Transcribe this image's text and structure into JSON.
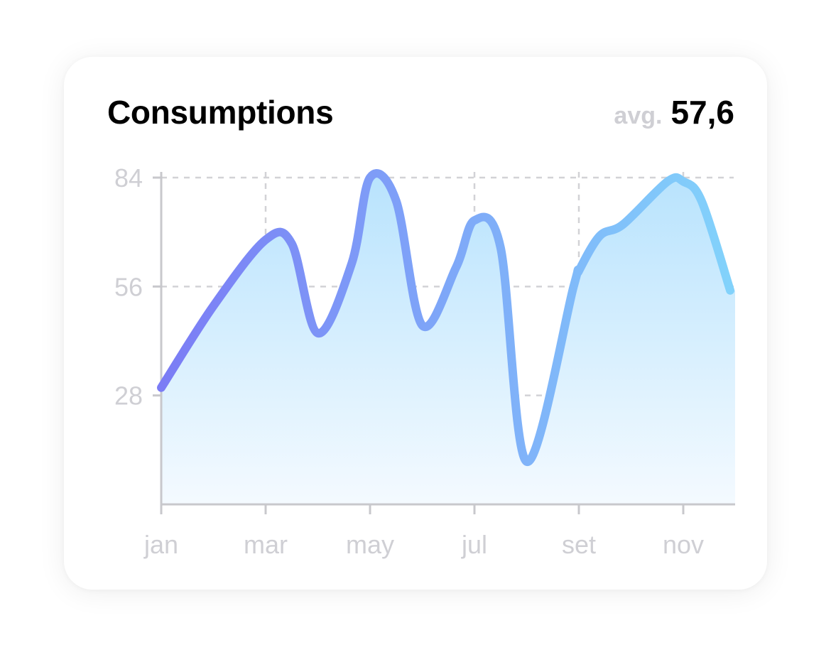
{
  "card": {
    "title": "Consumptions",
    "avg_label": "avg.",
    "avg_value": "57,6"
  },
  "colors": {
    "line_start": "#7b7cf5",
    "line_end": "#82d2fb",
    "area_top": "#b8e3fd",
    "area_bottom": "#f4faff",
    "grid": "#d2d2d6",
    "axis": "#c8c8cc",
    "tick_text": "#cfcfd4"
  },
  "chart_data": {
    "type": "area",
    "title": "Consumptions",
    "xlabel": "",
    "ylabel": "",
    "x_ticks": [
      "jan",
      "mar",
      "may",
      "jul",
      "set",
      "nov"
    ],
    "y_ticks": [
      28,
      56,
      84
    ],
    "xlim": [
      1,
      12
    ],
    "ylim": [
      0,
      84
    ],
    "grid": true,
    "smooth": true,
    "series": [
      {
        "x": [
          1,
          2,
          3,
          3.5,
          4,
          4.65,
          5,
          5.5,
          6,
          6.65,
          7,
          7.5,
          8,
          8.9,
          9,
          9.4,
          9.85,
          10.7,
          11,
          11.35,
          11.9
        ],
        "values": [
          30,
          51,
          68,
          67,
          44,
          62,
          84,
          78,
          46,
          61,
          73,
          66,
          11,
          56,
          60,
          69,
          72,
          83,
          83,
          78,
          55
        ]
      }
    ]
  }
}
